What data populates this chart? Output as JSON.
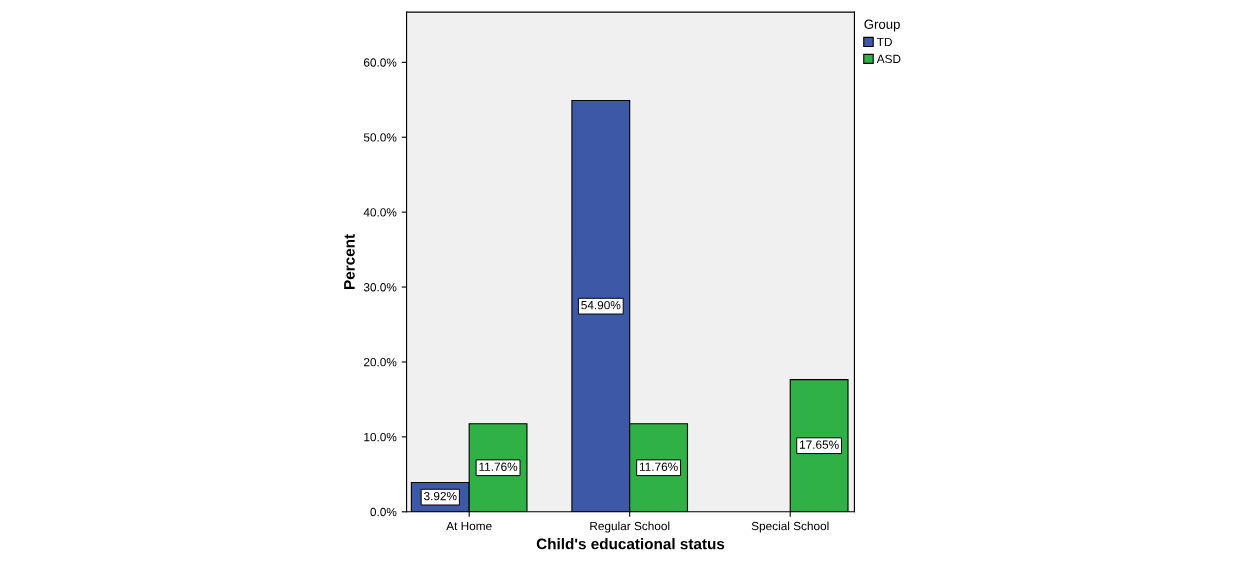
{
  "chart_data": {
    "type": "bar",
    "xlabel": "Child's educational status",
    "ylabel": "Percent",
    "legend_title": "Group",
    "categories": [
      "At Home",
      "Regular School",
      "Special School"
    ],
    "series": [
      {
        "name": "TD",
        "color": "#3e58a8",
        "values": [
          3.92,
          54.9,
          null
        ],
        "value_labels": [
          "3.92%",
          "54.90%",
          null
        ]
      },
      {
        "name": "ASD",
        "color": "#2fb145",
        "values": [
          11.76,
          11.76,
          17.65
        ],
        "value_labels": [
          "11.76%",
          "11.76%",
          "17.65%"
        ]
      }
    ],
    "ylim": [
      0,
      66.7
    ],
    "yticks": [
      {
        "value": 0,
        "label": "0.0%"
      },
      {
        "value": 10,
        "label": "10.0%"
      },
      {
        "value": 20,
        "label": "20.0%"
      },
      {
        "value": 30,
        "label": "30.0%"
      },
      {
        "value": 40,
        "label": "40.0%"
      },
      {
        "value": 50,
        "label": "50.0%"
      },
      {
        "value": 60,
        "label": "60.0%"
      }
    ],
    "grid": false,
    "legend": "top right"
  }
}
